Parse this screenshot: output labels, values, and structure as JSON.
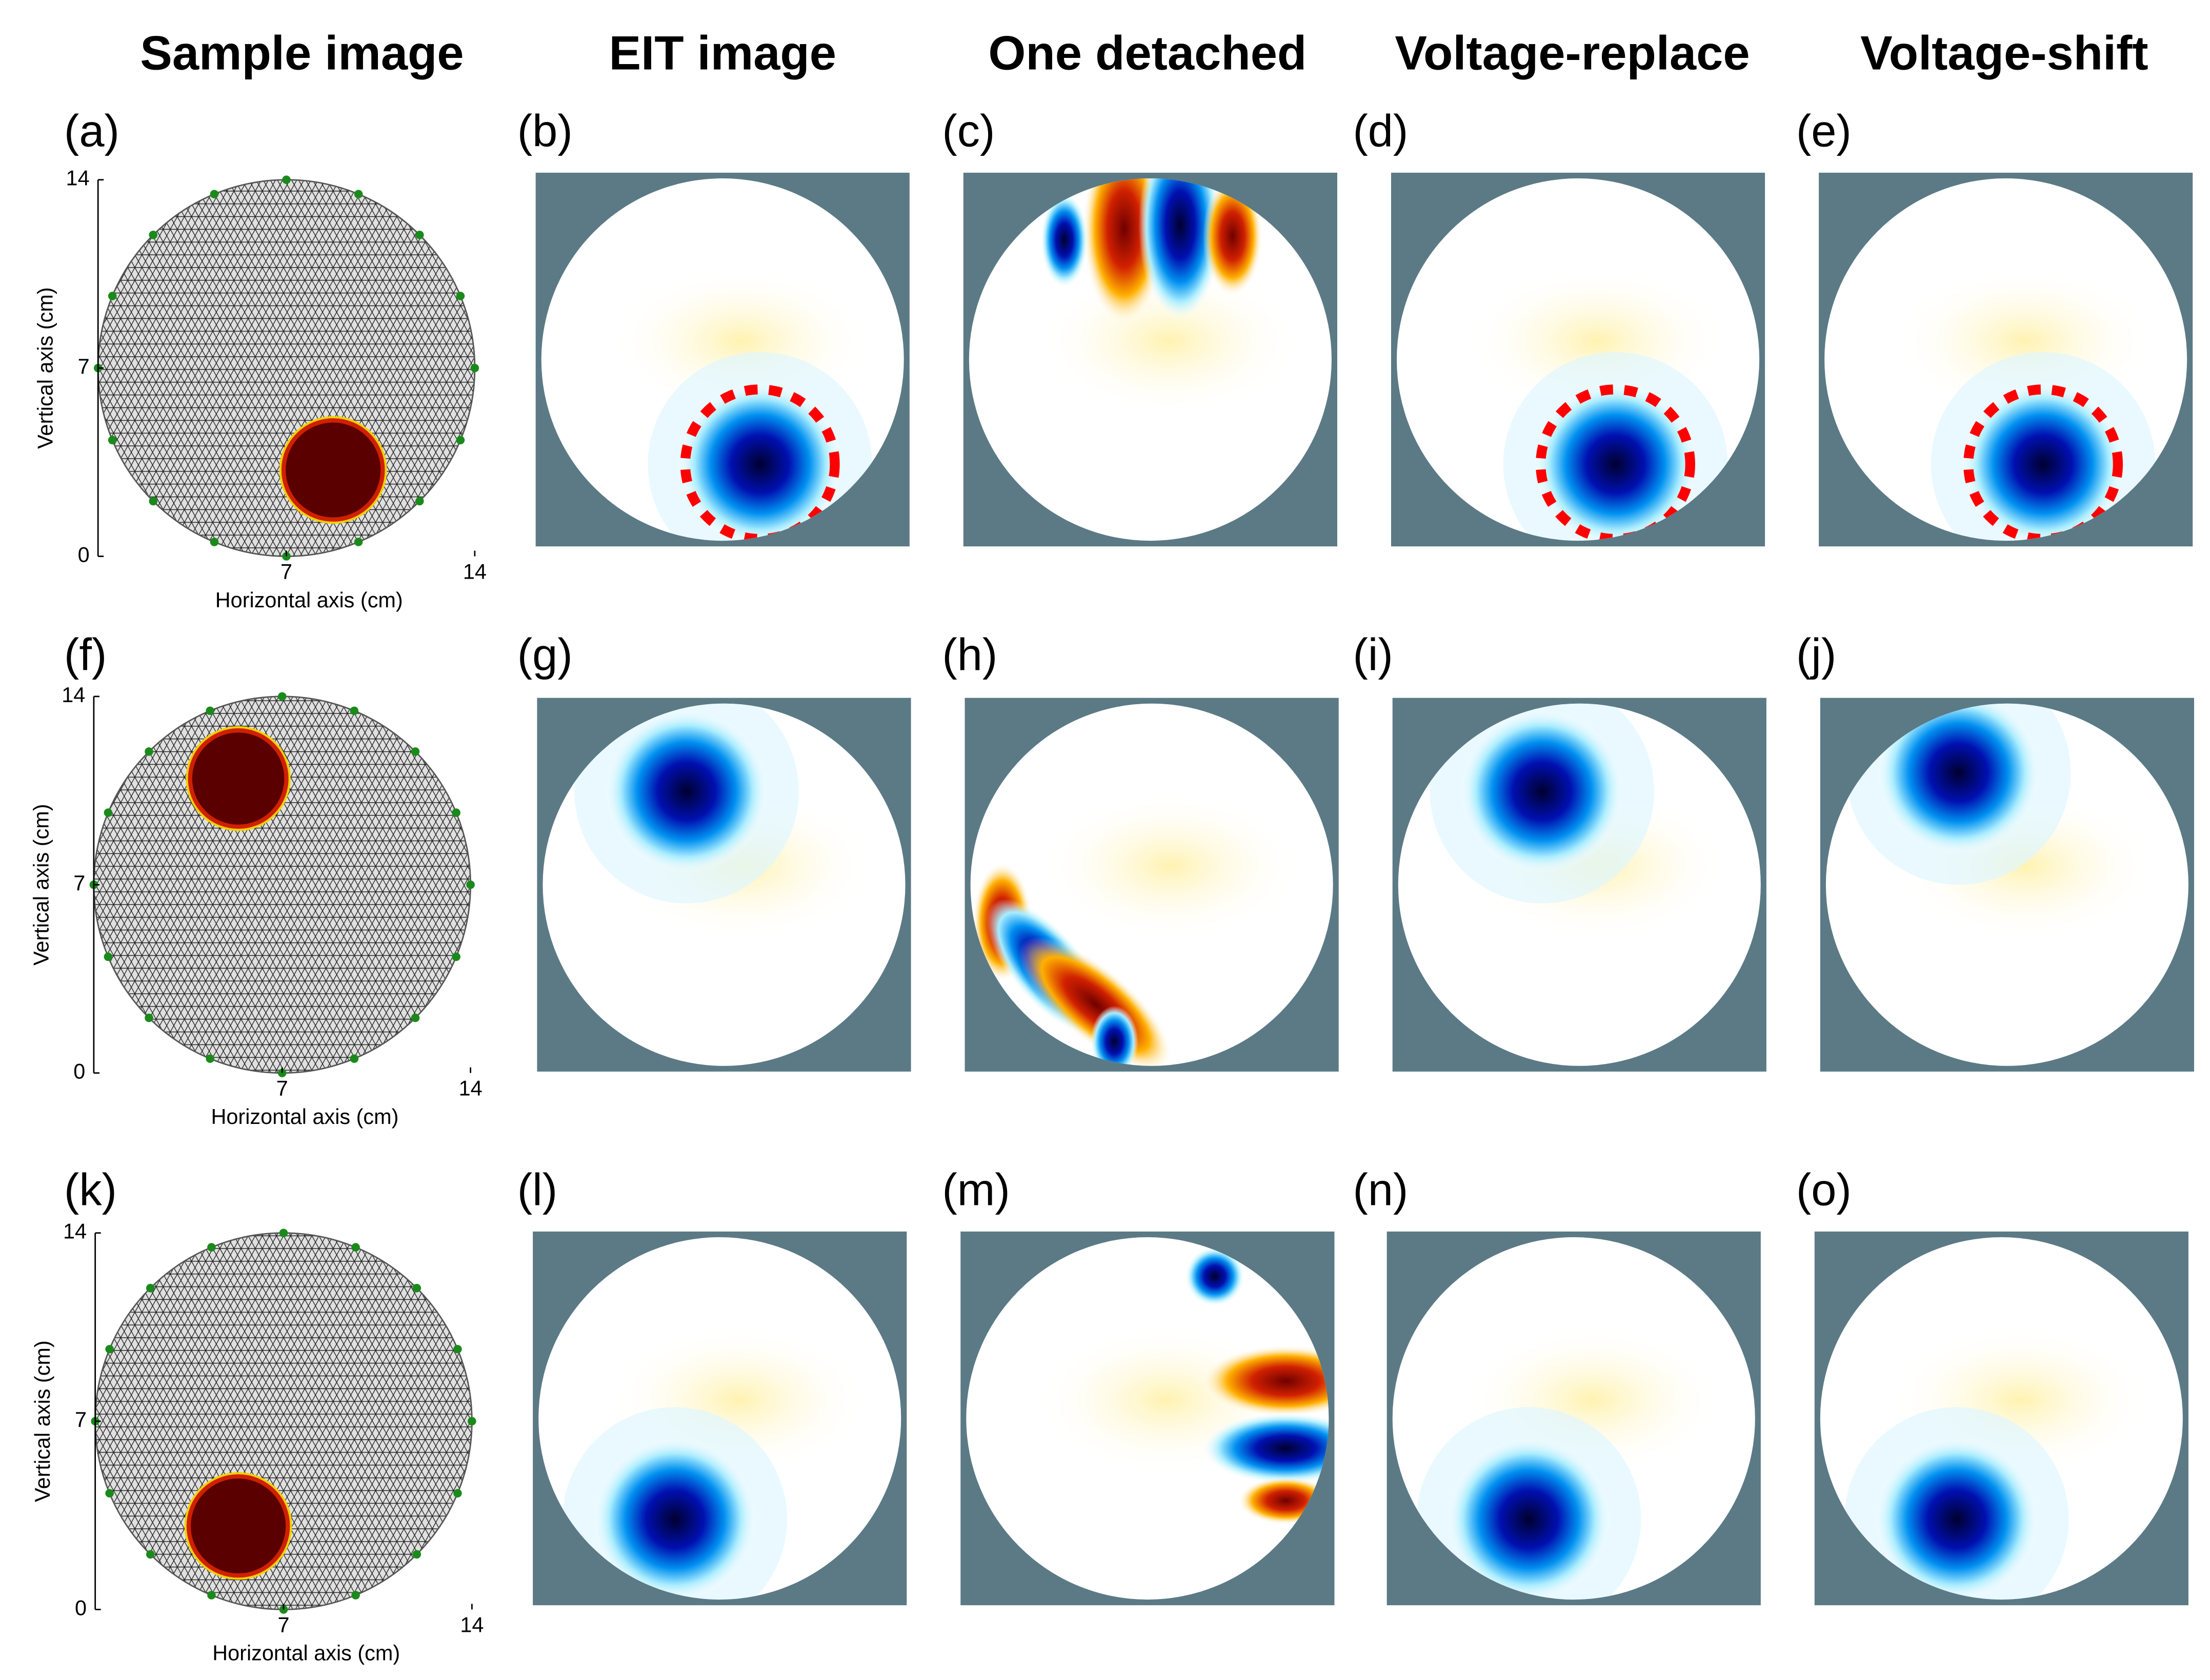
{
  "column_titles": [
    "Sample image",
    "EIT image",
    "One detached",
    "Voltage-replace",
    "Voltage-shift"
  ],
  "rows": [
    {
      "labels": [
        "(a)",
        "(b)",
        "(c)",
        "(d)",
        "(e)"
      ]
    },
    {
      "labels": [
        "(f)",
        "(g)",
        "(h)",
        "(i)",
        "(j)"
      ]
    },
    {
      "labels": [
        "(k)",
        "(l)",
        "(m)",
        "(n)",
        "(o)"
      ]
    }
  ],
  "axes": {
    "x_label": "Horizontal axis (cm)",
    "y_label": "Vertical axis (cm)",
    "lim": [
      0,
      14
    ],
    "xticks": [
      7,
      14
    ],
    "yticks": [
      0,
      7,
      14
    ]
  }
}
